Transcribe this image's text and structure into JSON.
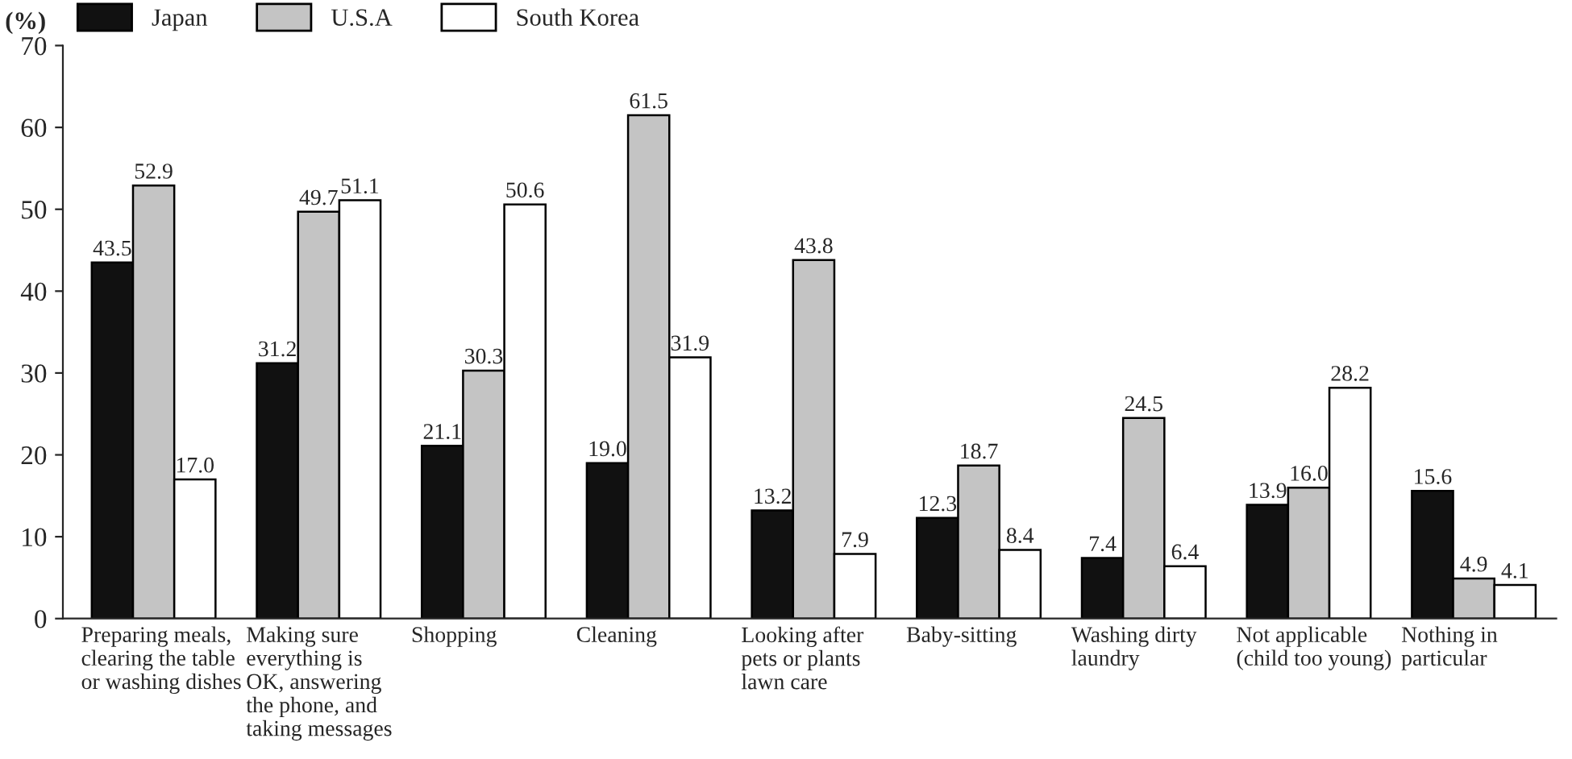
{
  "chart_data": {
    "type": "bar",
    "ylabel": "(%)",
    "categories": [
      "Preparing meals,\nclearing the table\nor washing dishes",
      "Making sure\neverything is\nOK, answering\nthe phone, and\ntaking messages",
      "Shopping",
      "Cleaning",
      "Looking after\npets or plants\nlawn care",
      "Baby-sitting",
      "Washing dirty\nlaundry",
      "Not applicable\n(child too young)",
      "Nothing in\nparticular"
    ],
    "series": [
      {
        "name": "Japan",
        "color": "#111111",
        "values": [
          43.5,
          31.2,
          21.1,
          19,
          13.2,
          12.3,
          7.4,
          13.9,
          15.6
        ],
        "value_labels": [
          "43.5",
          "31.2",
          "21.1",
          "19.0",
          "13.2",
          "12.3",
          "7.4",
          "13.9",
          "15.6"
        ]
      },
      {
        "name": "U.S.A",
        "color": "#c4c4c4",
        "values": [
          52.9,
          49.7,
          30.3,
          61.5,
          43.8,
          18.7,
          24.5,
          16,
          4.9
        ],
        "value_labels": [
          "52.9",
          "49.7",
          "30.3",
          "61.5",
          "43.8",
          "18.7",
          "24.5",
          "16.0",
          "4.9"
        ]
      },
      {
        "name": "South Korea",
        "color": "#ffffff",
        "values": [
          17,
          51.1,
          50.6,
          31.9,
          7.9,
          8.4,
          6.4,
          28.2,
          4.1
        ],
        "value_labels": [
          "17.0",
          "51.1",
          "50.6",
          "31.9",
          "7.9",
          "8.4",
          "6.4",
          "28.2",
          "4.1"
        ]
      }
    ],
    "ylim": [
      0,
      70
    ],
    "yticks": [
      0,
      10,
      20,
      30,
      40,
      50,
      60,
      70
    ],
    "grid": false,
    "legend": "top left"
  }
}
